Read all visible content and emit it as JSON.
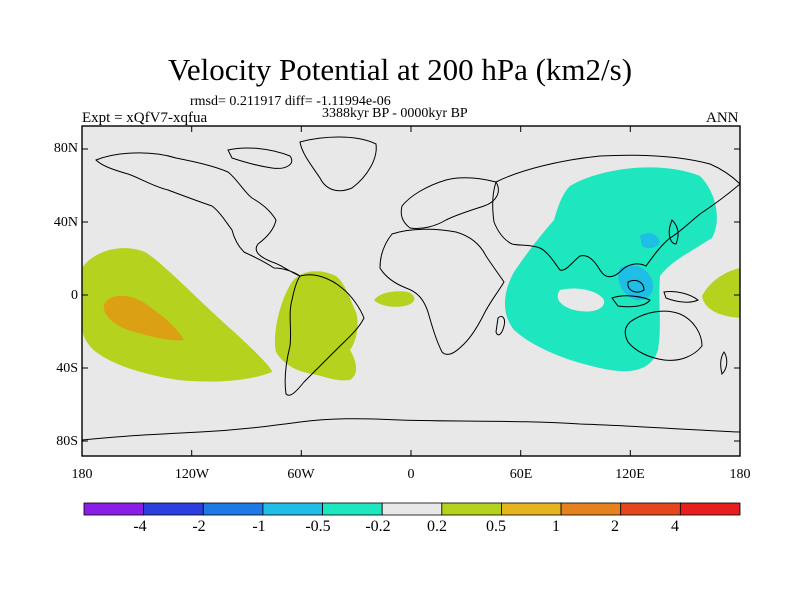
{
  "title": "Velocity Potential at 200 hPa (km2/s)",
  "stats": "rmsd= 0.211917 diff= -1.11994e-06",
  "period": "3388kyr BP - 0000kyr BP",
  "experiment": "Expt = xQfV7-xqfua",
  "season": "ANN",
  "lat_labels": [
    "80N",
    "40N",
    "0",
    "40S",
    "80S"
  ],
  "lon_labels": [
    "180",
    "120W",
    "60W",
    "0",
    "60E",
    "120E",
    "180"
  ],
  "colorbar": {
    "labels": [
      "-4",
      "-2",
      "-1",
      "-0.5",
      "-0.2",
      "0.2",
      "0.5",
      "1",
      "2",
      "4"
    ],
    "colors": [
      "#8a1ee6",
      "#2d3ee0",
      "#1e78e6",
      "#1ebee6",
      "#1ee6be",
      "#e8e8e8",
      "#b4d21e",
      "#e6b41e",
      "#e6821e",
      "#e6461e",
      "#e61e1e"
    ]
  },
  "map_colors": {
    "neutral": "#e8e8e8",
    "positive_weak": "#b4d21e",
    "positive_mid": "#dca014",
    "negative_weak": "#1ee6be",
    "negative_mid": "#1ebee6",
    "land_outline": "#000000"
  }
}
